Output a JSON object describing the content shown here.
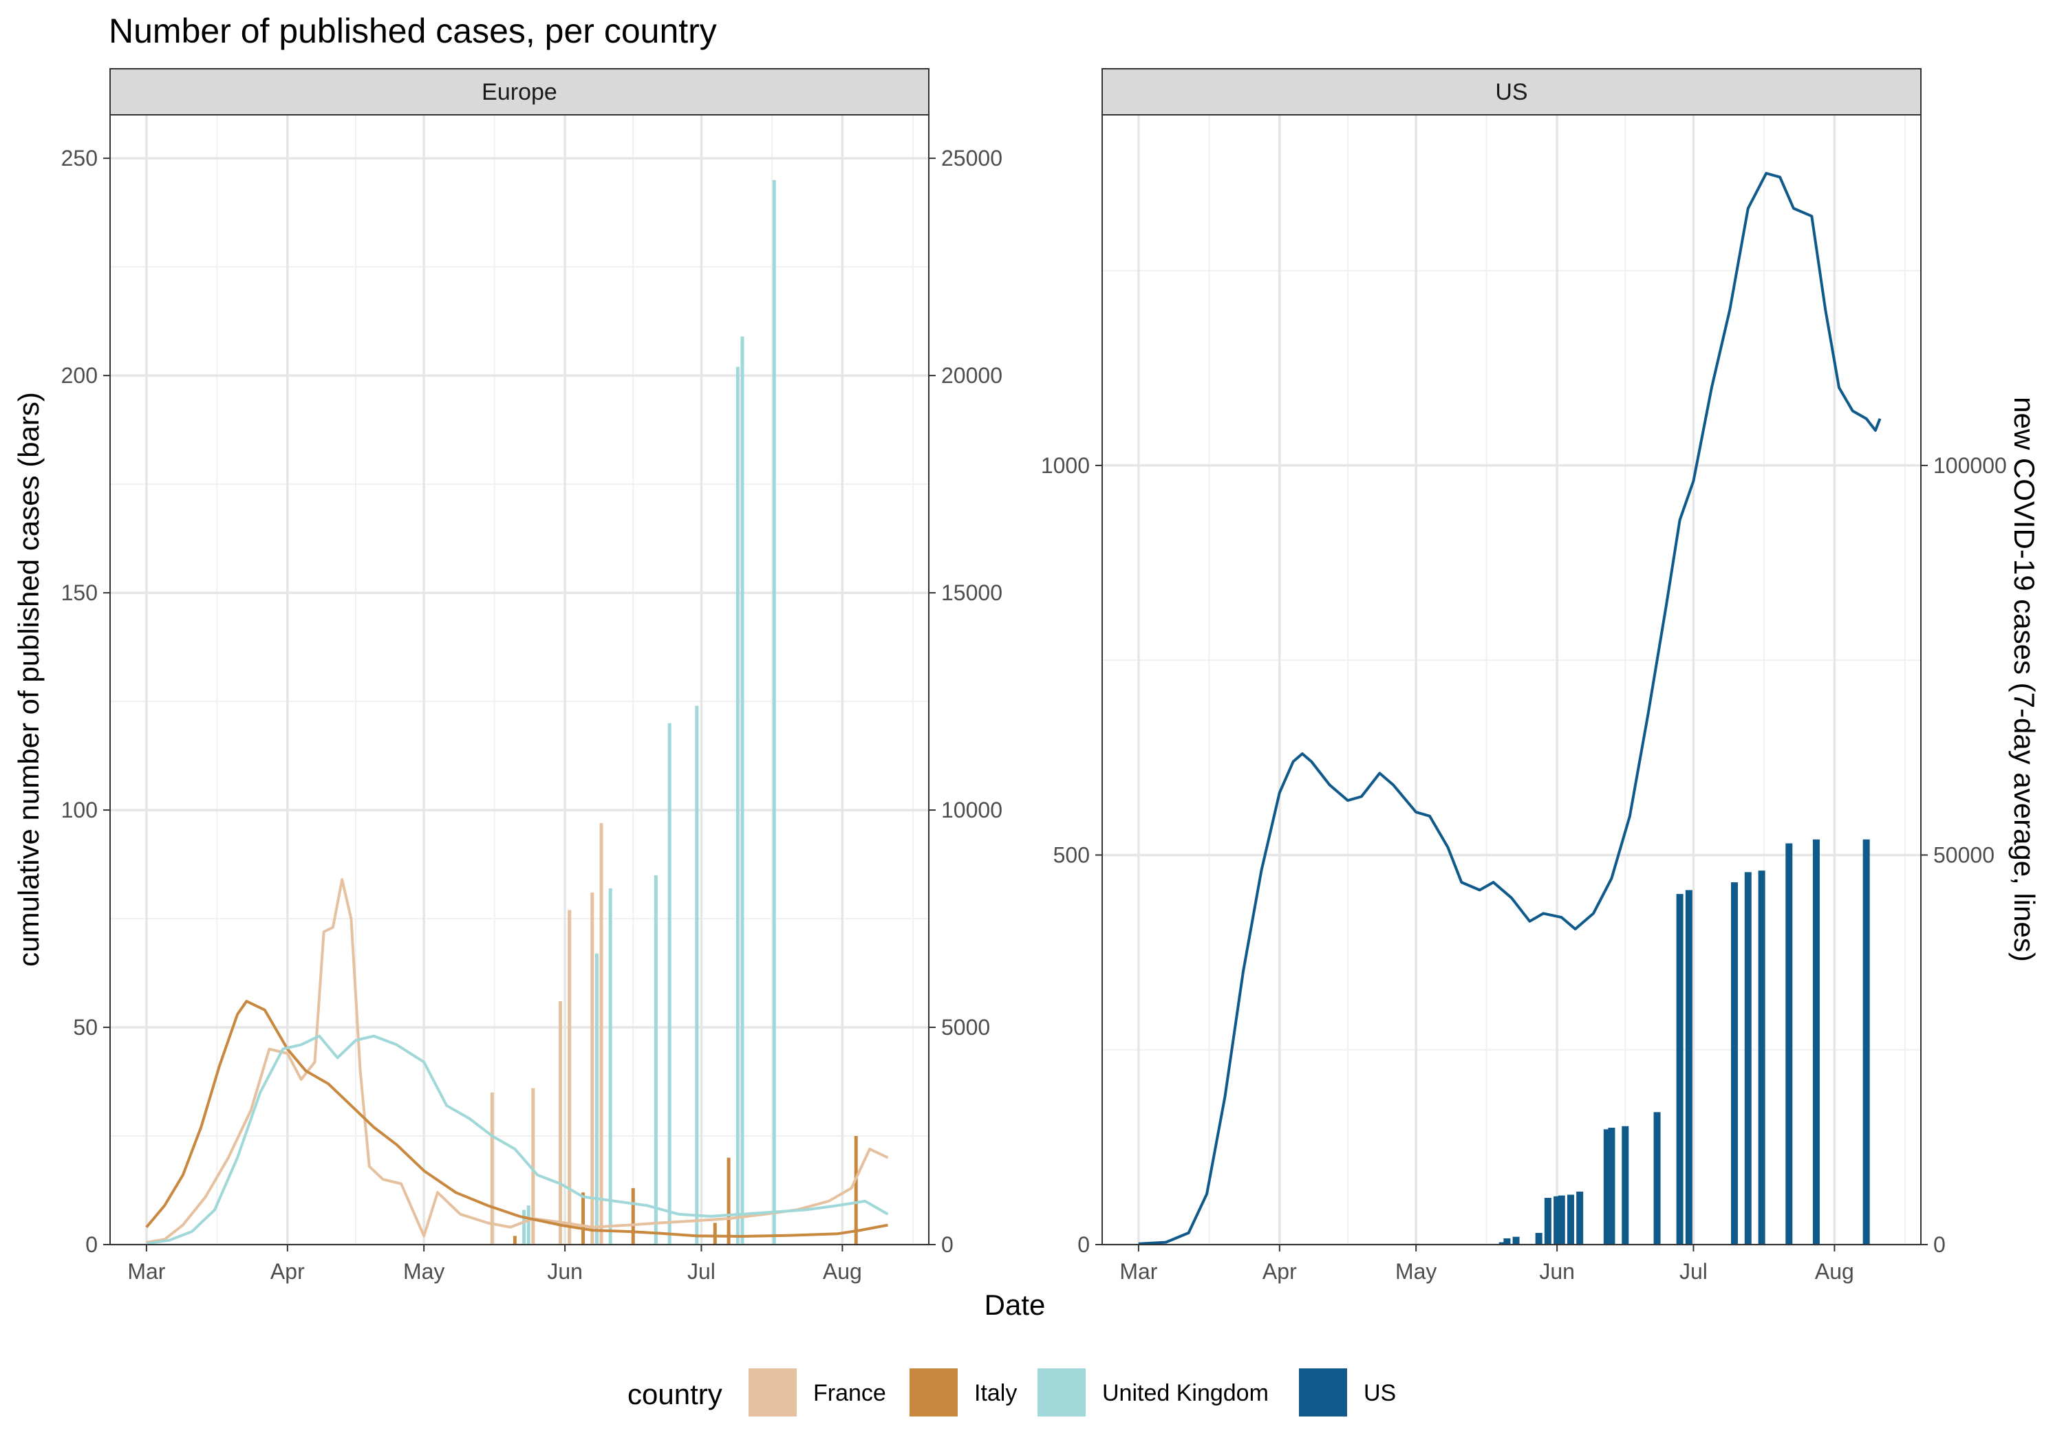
{
  "chart_data": {
    "type": "bar",
    "title": "Number of published cases, per country",
    "xlabel": "Date",
    "ylabel_left": "cumulative number of published cases (bars)",
    "ylabel_right": "new COVID-19 cases (7-day average, lines)",
    "legend": {
      "title": "country",
      "position": "bottom",
      "entries": [
        {
          "label": "France",
          "color": "#E5C1A0"
        },
        {
          "label": "Italy",
          "color": "#C8883F"
        },
        {
          "label": "United Kingdom",
          "color": "#A0D8D9"
        },
        {
          "label": "US",
          "color": "#0F5A8A"
        }
      ]
    },
    "x_ticks": [
      "Mar",
      "Apr",
      "May",
      "Jun",
      "Jul",
      "Aug"
    ],
    "x_tick_dates": [
      "2020-03-01",
      "2020-04-01",
      "2020-05-01",
      "2020-06-01",
      "2020-07-01",
      "2020-08-01"
    ],
    "xlim": [
      "2020-02-22",
      "2020-08-20"
    ],
    "grid": true,
    "panels": [
      {
        "strip": "Europe",
        "ylim_left": [
          0,
          260
        ],
        "ylim_right": [
          0,
          26000
        ],
        "y_ticks_left": [
          0,
          50,
          100,
          150,
          200,
          250
        ],
        "y_ticks_right": [
          0,
          5000,
          10000,
          15000,
          20000,
          25000
        ],
        "bars": {
          "France": [
            [
              "2020-05-16",
              35
            ],
            [
              "2020-05-25",
              36
            ],
            [
              "2020-05-31",
              56
            ],
            [
              "2020-06-02",
              77
            ],
            [
              "2020-06-07",
              81
            ],
            [
              "2020-06-09",
              97
            ]
          ],
          "Italy": [
            [
              "2020-05-21",
              2
            ],
            [
              "2020-06-05",
              12
            ],
            [
              "2020-06-16",
              13
            ],
            [
              "2020-07-04",
              5
            ],
            [
              "2020-07-07",
              20
            ],
            [
              "2020-08-04",
              25
            ]
          ],
          "United Kingdom": [
            [
              "2020-05-23",
              8
            ],
            [
              "2020-05-24",
              9
            ],
            [
              "2020-06-08",
              67
            ],
            [
              "2020-06-11",
              82
            ],
            [
              "2020-06-21",
              85
            ],
            [
              "2020-06-24",
              120
            ],
            [
              "2020-06-30",
              124
            ],
            [
              "2020-07-09",
              202
            ],
            [
              "2020-07-10",
              209
            ],
            [
              "2020-07-17",
              245
            ]
          ]
        },
        "lines": {
          "France": [
            [
              "2020-03-01",
              50
            ],
            [
              "2020-03-05",
              120
            ],
            [
              "2020-03-09",
              450
            ],
            [
              "2020-03-14",
              1100
            ],
            [
              "2020-03-19",
              2000
            ],
            [
              "2020-03-24",
              3100
            ],
            [
              "2020-03-28",
              4500
            ],
            [
              "2020-04-01",
              4400
            ],
            [
              "2020-04-04",
              3800
            ],
            [
              "2020-04-07",
              4200
            ],
            [
              "2020-04-09",
              7200
            ],
            [
              "2020-04-11",
              7300
            ],
            [
              "2020-04-13",
              8400
            ],
            [
              "2020-04-15",
              7500
            ],
            [
              "2020-04-17",
              4000
            ],
            [
              "2020-04-19",
              1800
            ],
            [
              "2020-04-22",
              1500
            ],
            [
              "2020-04-26",
              1400
            ],
            [
              "2020-05-01",
              200
            ],
            [
              "2020-05-04",
              1200
            ],
            [
              "2020-05-09",
              700
            ],
            [
              "2020-05-15",
              500
            ],
            [
              "2020-05-20",
              400
            ],
            [
              "2020-05-25",
              600
            ],
            [
              "2020-06-01",
              500
            ],
            [
              "2020-06-07",
              400
            ],
            [
              "2020-06-15",
              450
            ],
            [
              "2020-06-22",
              500
            ],
            [
              "2020-06-30",
              550
            ],
            [
              "2020-07-07",
              600
            ],
            [
              "2020-07-15",
              700
            ],
            [
              "2020-07-22",
              800
            ],
            [
              "2020-07-29",
              1000
            ],
            [
              "2020-08-03",
              1300
            ],
            [
              "2020-08-07",
              2200
            ],
            [
              "2020-08-11",
              2000
            ]
          ],
          "Italy": [
            [
              "2020-03-01",
              400
            ],
            [
              "2020-03-05",
              900
            ],
            [
              "2020-03-09",
              1600
            ],
            [
              "2020-03-13",
              2700
            ],
            [
              "2020-03-17",
              4100
            ],
            [
              "2020-03-21",
              5300
            ],
            [
              "2020-03-23",
              5600
            ],
            [
              "2020-03-27",
              5400
            ],
            [
              "2020-04-01",
              4500
            ],
            [
              "2020-04-05",
              4000
            ],
            [
              "2020-04-10",
              3700
            ],
            [
              "2020-04-15",
              3200
            ],
            [
              "2020-04-20",
              2700
            ],
            [
              "2020-04-25",
              2300
            ],
            [
              "2020-05-01",
              1700
            ],
            [
              "2020-05-08",
              1200
            ],
            [
              "2020-05-15",
              900
            ],
            [
              "2020-05-22",
              650
            ],
            [
              "2020-05-31",
              450
            ],
            [
              "2020-06-07",
              330
            ],
            [
              "2020-06-15",
              300
            ],
            [
              "2020-06-22",
              260
            ],
            [
              "2020-06-30",
              200
            ],
            [
              "2020-07-10",
              190
            ],
            [
              "2020-07-20",
              210
            ],
            [
              "2020-07-31",
              250
            ],
            [
              "2020-08-05",
              330
            ],
            [
              "2020-08-11",
              450
            ]
          ],
          "United Kingdom": [
            [
              "2020-03-01",
              20
            ],
            [
              "2020-03-06",
              100
            ],
            [
              "2020-03-11",
              300
            ],
            [
              "2020-03-16",
              800
            ],
            [
              "2020-03-21",
              2000
            ],
            [
              "2020-03-26",
              3500
            ],
            [
              "2020-03-31",
              4500
            ],
            [
              "2020-04-04",
              4600
            ],
            [
              "2020-04-08",
              4800
            ],
            [
              "2020-04-12",
              4300
            ],
            [
              "2020-04-16",
              4700
            ],
            [
              "2020-04-20",
              4800
            ],
            [
              "2020-04-25",
              4600
            ],
            [
              "2020-05-01",
              4200
            ],
            [
              "2020-05-06",
              3200
            ],
            [
              "2020-05-11",
              2900
            ],
            [
              "2020-05-16",
              2500
            ],
            [
              "2020-05-21",
              2200
            ],
            [
              "2020-05-26",
              1600
            ],
            [
              "2020-05-31",
              1400
            ],
            [
              "2020-06-05",
              1100
            ],
            [
              "2020-06-12",
              1000
            ],
            [
              "2020-06-19",
              900
            ],
            [
              "2020-06-26",
              700
            ],
            [
              "2020-07-03",
              650
            ],
            [
              "2020-07-10",
              700
            ],
            [
              "2020-07-17",
              750
            ],
            [
              "2020-07-24",
              800
            ],
            [
              "2020-07-31",
              900
            ],
            [
              "2020-08-06",
              1000
            ],
            [
              "2020-08-11",
              700
            ]
          ]
        }
      },
      {
        "strip": "US",
        "ylim_left": [
          0,
          1450
        ],
        "ylim_right": [
          0,
          145000
        ],
        "y_ticks_left": [
          0,
          500,
          1000
        ],
        "y_ticks_right": [
          0,
          50000,
          100000
        ],
        "bars": {
          "US": [
            [
              "2020-05-01",
              1
            ],
            [
              "2020-05-20",
              3
            ],
            [
              "2020-05-21",
              8
            ],
            [
              "2020-05-23",
              10
            ],
            [
              "2020-05-28",
              15
            ],
            [
              "2020-05-30",
              60
            ],
            [
              "2020-06-01",
              62
            ],
            [
              "2020-06-02",
              63
            ],
            [
              "2020-06-04",
              64
            ],
            [
              "2020-06-06",
              68
            ],
            [
              "2020-06-12",
              148
            ],
            [
              "2020-06-13",
              150
            ],
            [
              "2020-06-16",
              152
            ],
            [
              "2020-06-23",
              170
            ],
            [
              "2020-06-28",
              450
            ],
            [
              "2020-06-30",
              455
            ],
            [
              "2020-07-10",
              465
            ],
            [
              "2020-07-13",
              478
            ],
            [
              "2020-07-16",
              480
            ],
            [
              "2020-07-22",
              515
            ],
            [
              "2020-07-28",
              520
            ],
            [
              "2020-08-08",
              520
            ]
          ]
        },
        "lines": {
          "US": [
            [
              "2020-03-01",
              100
            ],
            [
              "2020-03-07",
              300
            ],
            [
              "2020-03-12",
              1500
            ],
            [
              "2020-03-16",
              6500
            ],
            [
              "2020-03-20",
              19000
            ],
            [
              "2020-03-24",
              35000
            ],
            [
              "2020-03-28",
              48000
            ],
            [
              "2020-04-01",
              58000
            ],
            [
              "2020-04-04",
              62000
            ],
            [
              "2020-04-06",
              63000
            ],
            [
              "2020-04-08",
              62000
            ],
            [
              "2020-04-12",
              59000
            ],
            [
              "2020-04-16",
              57000
            ],
            [
              "2020-04-19",
              57500
            ],
            [
              "2020-04-23",
              60500
            ],
            [
              "2020-04-26",
              59000
            ],
            [
              "2020-05-01",
              55500
            ],
            [
              "2020-05-04",
              55000
            ],
            [
              "2020-05-08",
              51000
            ],
            [
              "2020-05-11",
              46500
            ],
            [
              "2020-05-15",
              45500
            ],
            [
              "2020-05-18",
              46500
            ],
            [
              "2020-05-22",
              44500
            ],
            [
              "2020-05-26",
              41500
            ],
            [
              "2020-05-29",
              42500
            ],
            [
              "2020-06-02",
              42000
            ],
            [
              "2020-06-05",
              40500
            ],
            [
              "2020-06-09",
              42500
            ],
            [
              "2020-06-13",
              47000
            ],
            [
              "2020-06-17",
              55000
            ],
            [
              "2020-06-21",
              68000
            ],
            [
              "2020-06-25",
              82000
            ],
            [
              "2020-06-28",
              93000
            ],
            [
              "2020-07-01",
              98000
            ],
            [
              "2020-07-05",
              110000
            ],
            [
              "2020-07-09",
              120000
            ],
            [
              "2020-07-13",
              133000
            ],
            [
              "2020-07-17",
              137500
            ],
            [
              "2020-07-20",
              137000
            ],
            [
              "2020-07-23",
              133000
            ],
            [
              "2020-07-27",
              132000
            ],
            [
              "2020-07-30",
              120000
            ],
            [
              "2020-08-02",
              110000
            ],
            [
              "2020-08-05",
              107000
            ],
            [
              "2020-08-08",
              106000
            ],
            [
              "2020-08-10",
              104500
            ],
            [
              "2020-08-11",
              106000
            ]
          ]
        }
      }
    ]
  }
}
